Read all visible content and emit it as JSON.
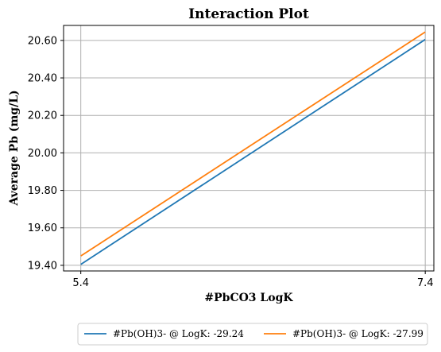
{
  "chart_data": {
    "type": "line",
    "title": "Interaction Plot",
    "xlabel": "#PbCO3 LogK",
    "ylabel": "Average Pb (mg/L)",
    "x": [
      5.4,
      7.4
    ],
    "x_ticks": [
      "5.4",
      "7.4"
    ],
    "xlim": [
      5.3,
      7.45
    ],
    "ylim": [
      19.37,
      20.68
    ],
    "y_ticks": [
      "19.40",
      "19.60",
      "19.80",
      "20.00",
      "20.20",
      "20.40",
      "20.60"
    ],
    "y_tick_values": [
      19.4,
      19.6,
      19.8,
      20.0,
      20.2,
      20.4,
      20.6
    ],
    "grid": true,
    "legend_position": "bottom-center",
    "series": [
      {
        "name": "#Pb(OH)3- @ LogK: -29.24",
        "values": [
          19.405,
          20.605
        ],
        "color": "#1f77b4"
      },
      {
        "name": "#Pb(OH)3- @ LogK: -27.99",
        "values": [
          19.45,
          20.645
        ],
        "color": "#ff7f0e"
      }
    ]
  }
}
